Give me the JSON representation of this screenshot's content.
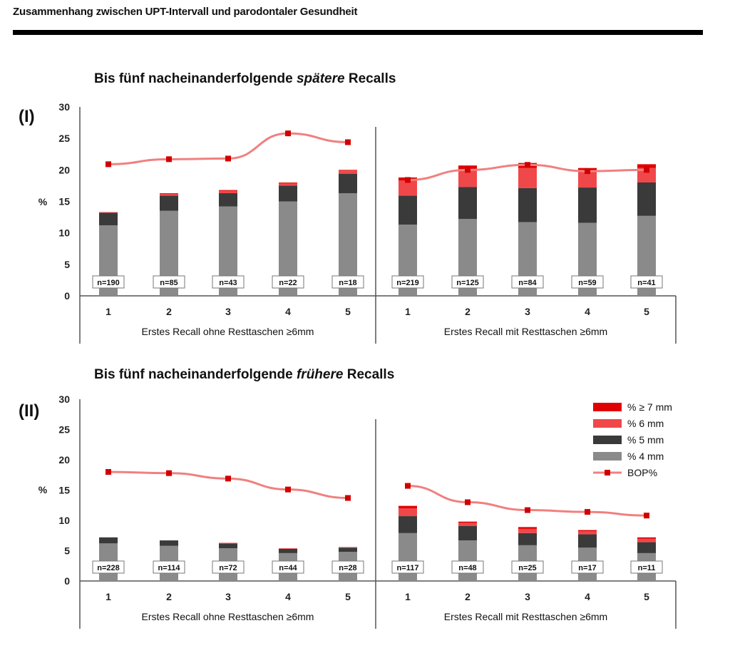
{
  "header": {
    "title": "Zusammenhang zwischen UPT-Intervall und parodontaler Gesundheit"
  },
  "colors": {
    "pct4": "#8a8a8a",
    "pct5": "#3a3a3a",
    "pct6": "#f0474a",
    "pct7": "#e00000",
    "bop": "#f08080",
    "bop_marker": "#d10000"
  },
  "chart_data": [
    {
      "type": "bar",
      "panel_label": "(I)",
      "title_prefix": "Bis fünf nacheinanderfolgende ",
      "title_italic": "spätere",
      "title_suffix": " Recalls",
      "ylabel": "%",
      "ylim": [
        0,
        30
      ],
      "yticks": [
        "0",
        "5",
        "10",
        "15",
        "20",
        "25",
        "30"
      ],
      "groups": [
        {
          "label": "Erstes Recall ohne Resttaschen ≥6mm",
          "categories": [
            "1",
            "2",
            "3",
            "4",
            "5"
          ],
          "n_labels": [
            "n=190",
            "n=85",
            "n=43",
            "n=22",
            "n=18"
          ],
          "pct4": [
            11.2,
            13.5,
            14.2,
            15.0,
            16.3
          ],
          "pct5": [
            2.0,
            2.4,
            2.1,
            2.5,
            3.1
          ],
          "pct6": [
            0.1,
            0.3,
            0.4,
            0.4,
            0.5
          ],
          "pct7": [
            0,
            0.1,
            0.1,
            0.1,
            0.1
          ],
          "bop": [
            20.9,
            21.7,
            21.8,
            25.8,
            24.4
          ]
        },
        {
          "label": "Erstes Recall mit Resttaschen ≥6mm",
          "categories": [
            "1",
            "2",
            "3",
            "4",
            "5"
          ],
          "n_labels": [
            "n=219",
            "n=125",
            "n=84",
            "n=59",
            "n=41"
          ],
          "pct4": [
            11.3,
            12.2,
            11.7,
            11.6,
            12.7
          ],
          "pct5": [
            4.6,
            5.1,
            5.4,
            5.6,
            5.3
          ],
          "pct6": [
            2.4,
            2.8,
            3.2,
            2.6,
            2.3
          ],
          "pct7": [
            0.5,
            0.6,
            0.8,
            0.5,
            0.6
          ],
          "bop": [
            18.4,
            20.0,
            20.8,
            19.8,
            20.0
          ]
        }
      ]
    },
    {
      "type": "bar",
      "panel_label": "(II)",
      "title_prefix": "Bis fünf nacheinanderfolgende ",
      "title_italic": "frühere",
      "title_suffix": " Recalls",
      "ylabel": "%",
      "ylim": [
        0,
        30
      ],
      "yticks": [
        "0",
        "5",
        "10",
        "15",
        "20",
        "25",
        "30"
      ],
      "groups": [
        {
          "label": "Erstes Recall ohne Resttaschen ≥6mm",
          "categories": [
            "1",
            "2",
            "3",
            "4",
            "5"
          ],
          "n_labels": [
            "n=228",
            "n=114",
            "n=72",
            "n=44",
            "n=28"
          ],
          "pct4": [
            6.2,
            5.8,
            5.4,
            4.6,
            4.8
          ],
          "pct5": [
            1.0,
            0.9,
            0.8,
            0.7,
            0.7
          ],
          "pct6": [
            0,
            0,
            0.1,
            0.1,
            0.1
          ],
          "pct7": [
            0,
            0,
            0,
            0,
            0
          ],
          "bop": [
            18.0,
            17.8,
            16.9,
            15.1,
            13.7
          ]
        },
        {
          "label": "Erstes Recall mit Resttaschen ≥6mm",
          "categories": [
            "1",
            "2",
            "3",
            "4",
            "5"
          ],
          "n_labels": [
            "n=117",
            "n=48",
            "n=25",
            "n=17",
            "n=11"
          ],
          "pct4": [
            7.9,
            6.7,
            5.9,
            5.5,
            4.6
          ],
          "pct5": [
            2.8,
            2.4,
            2.0,
            2.2,
            1.8
          ],
          "pct6": [
            1.3,
            0.5,
            0.7,
            0.5,
            0.6
          ],
          "pct7": [
            0.4,
            0.2,
            0.3,
            0.2,
            0.2
          ],
          "bop": [
            15.7,
            13.0,
            11.7,
            11.4,
            10.8
          ]
        }
      ]
    }
  ],
  "legend": {
    "items": [
      {
        "label": "% ≥ 7 mm",
        "color": "#e00000",
        "kind": "bar"
      },
      {
        "label": "% 6 mm",
        "color": "#f0474a",
        "kind": "bar"
      },
      {
        "label": "% 5 mm",
        "color": "#3a3a3a",
        "kind": "bar"
      },
      {
        "label": "% 4 mm",
        "color": "#8a8a8a",
        "kind": "bar"
      },
      {
        "label": "BOP%",
        "color": "#f08080",
        "kind": "line"
      }
    ]
  }
}
